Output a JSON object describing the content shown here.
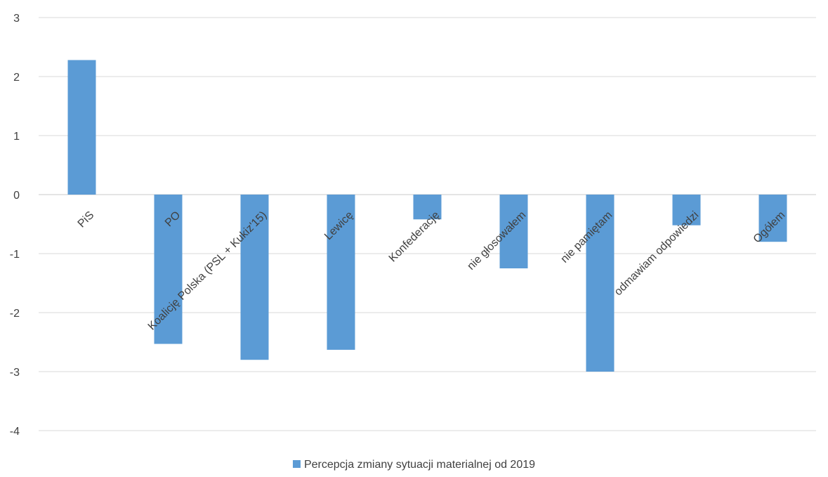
{
  "chart_data": {
    "type": "bar",
    "title": "",
    "xlabel": "",
    "ylabel": "",
    "ylim": [
      -4,
      3
    ],
    "yticks": [
      3,
      2,
      1,
      0,
      -1,
      -2,
      -3,
      -4
    ],
    "grid": true,
    "legend_position": "bottom",
    "categories": [
      "PiS",
      "PO",
      "Koalicję Polska (PSL + Kukiz'15)",
      "Lewicę",
      "Konfederację",
      "nie głosowałem",
      "nie pamiętam",
      "odmawiam odpowiedzi",
      "Ogółem"
    ],
    "series": [
      {
        "name": "Percepcja zmiany sytuacji materialnej od 2019",
        "color": "#5b9bd5",
        "values": [
          2.28,
          -2.53,
          -2.8,
          -2.63,
          -0.42,
          -1.25,
          -3.0,
          -0.52,
          -0.8
        ]
      }
    ]
  }
}
